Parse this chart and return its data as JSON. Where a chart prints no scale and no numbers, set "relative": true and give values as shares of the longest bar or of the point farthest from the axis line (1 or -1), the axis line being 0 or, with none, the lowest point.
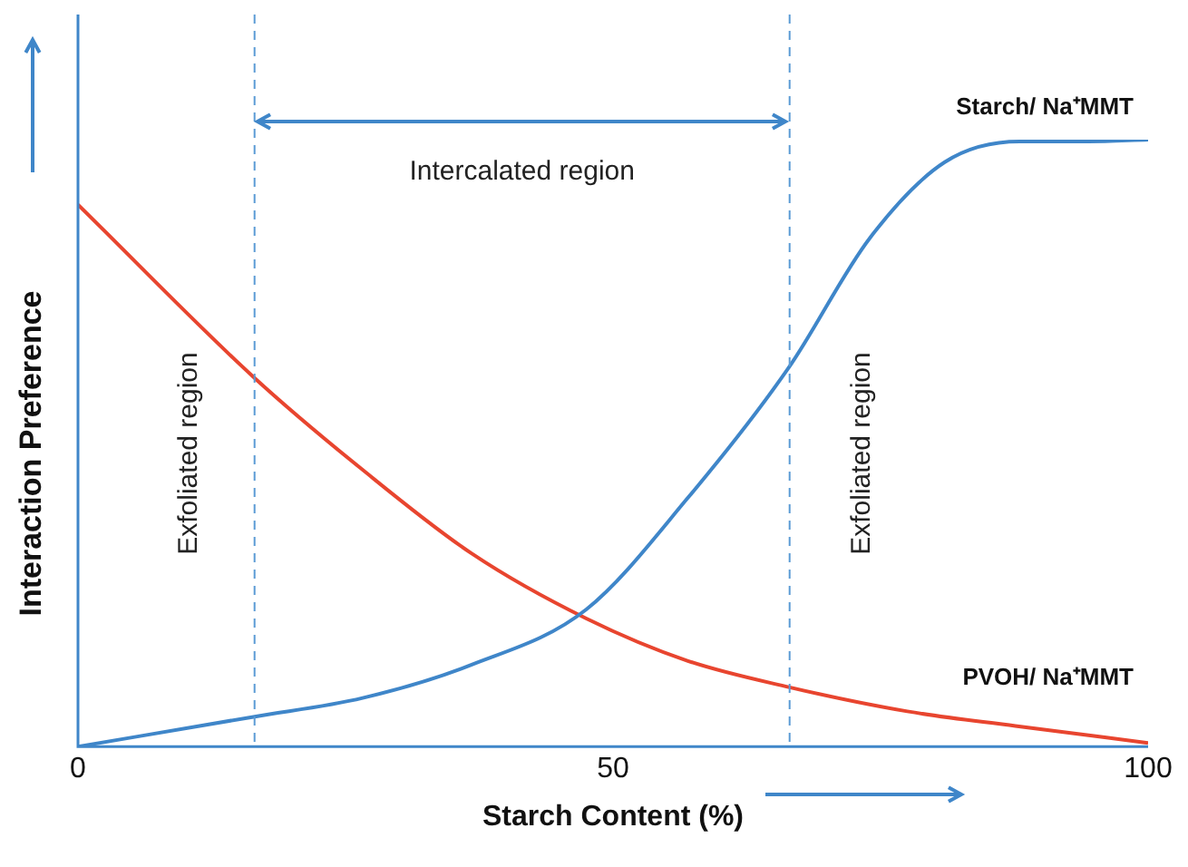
{
  "chart_data": {
    "type": "line",
    "relative": true,
    "xlabel": "Starch Content (%)",
    "ylabel": "Interaction Preference",
    "xlim": [
      0,
      100
    ],
    "xticks": [
      0,
      50,
      100
    ],
    "grid": false,
    "legend": false,
    "marker": "none",
    "line_style": "solid",
    "series": [
      {
        "name": "Starch/ Na⁺MMT",
        "color": "#3f86c9",
        "x": [
          0,
          16.4,
          26.6,
          36.8,
          47.5,
          57,
          66.4,
          74,
          81,
          88,
          94.4,
          100
        ],
        "values": [
          0,
          0.049,
          0.08,
          0.135,
          0.226,
          0.41,
          0.624,
          0.838,
          0.963,
          0.997,
          0.997,
          1
        ]
      },
      {
        "name": "PVOH/ Na⁺MMT",
        "color": "#e8452f",
        "x": [
          0,
          16.4,
          26.6,
          36.8,
          47.5,
          57,
          66.4,
          77.5,
          87.6,
          100
        ],
        "values": [
          0.893,
          0.609,
          0.456,
          0.318,
          0.211,
          0.141,
          0.098,
          0.058,
          0.034,
          0.006
        ]
      }
    ],
    "ref_lines": [
      {
        "axis": "x",
        "value": 16.5,
        "label": "Exfoliated region",
        "color": "#5b9bd5",
        "line_style": "dashed"
      },
      {
        "axis": "x",
        "value": 66.5,
        "label": "Exfoliated region",
        "color": "#5b9bd5",
        "line_style": "dashed"
      }
    ],
    "annotations": [
      "Intercalated region"
    ]
  }
}
